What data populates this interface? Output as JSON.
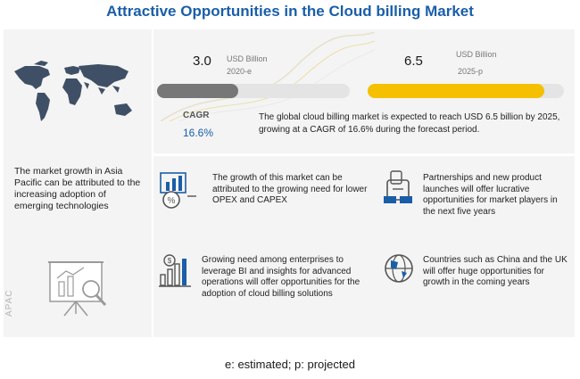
{
  "title": "Attractive Opportunities in the Cloud billing Market",
  "chart_data": {
    "type": "bar",
    "categories": [
      "2020-e",
      "2025-p"
    ],
    "values": [
      3.0,
      6.5
    ],
    "value_labels": [
      "3.0",
      "6.5"
    ],
    "unit": "USD Billion",
    "max": 6.5,
    "colors": [
      "#777777",
      "#f5c000"
    ]
  },
  "cagr": {
    "label": "CAGR",
    "value": "16.6%"
  },
  "summary": "The global cloud billing market is expected to reach USD 6.5 billion by 2025, growing at a CAGR of 16.6% during the forecast period.",
  "left_panel": {
    "text": "The market growth in Asia Pacific can be attributed to the increasing adoption of emerging technologies",
    "region": "APAC"
  },
  "points": [
    {
      "text": "The growth of this market can be attributed to the growing need for lower OPEX and CAPEX"
    },
    {
      "text": "Partnerships and new product launches will offer lucrative opportunities for market players in the next five years"
    },
    {
      "text": "Growing need among enterprises to leverage BI and insights for advanced operations will offer opportunities for the adoption of cloud billing solutions"
    },
    {
      "text": "Countries such as China and the UK will offer huge opportunities for growth in the coming years"
    }
  ],
  "footnote": "e: estimated; p: projected",
  "icons": [
    "world-map-icon",
    "percent-chart-icon",
    "handshake-icon",
    "bar-growth-icon",
    "globe-icon",
    "analytics-board-icon"
  ]
}
